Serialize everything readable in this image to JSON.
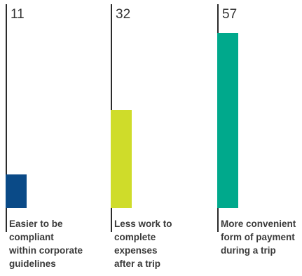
{
  "chart_data": {
    "type": "bar",
    "categories": [
      "Easier to be\ncompliant\nwithin corporate\nguidelines",
      "Less work to\ncomplete\nexpenses\nafter a trip",
      "More convenient\nform of payment\nduring a trip"
    ],
    "values": [
      11,
      32,
      57
    ],
    "value_labels": [
      "11",
      "32",
      "57"
    ],
    "colors": [
      "#0a4a87",
      "#cfdc2a",
      "#00a98c"
    ],
    "ylim": [
      0,
      57
    ],
    "title": "",
    "xlabel": "",
    "ylabel": "",
    "grid": false,
    "legend": "none"
  }
}
